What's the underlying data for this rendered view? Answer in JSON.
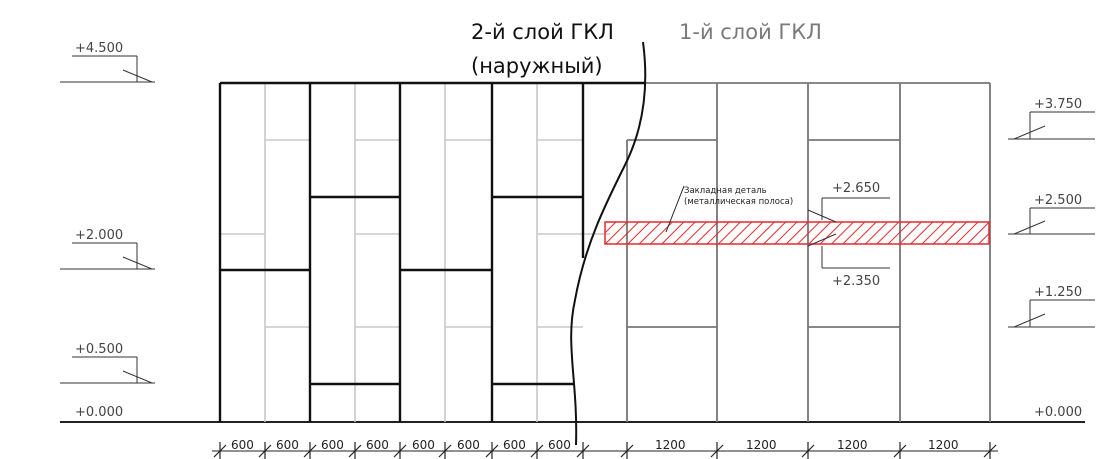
{
  "titles": {
    "layer2_line1": "2-й слой ГКЛ",
    "layer2_line2": "(наружный)",
    "layer1": "1-й слой ГКЛ"
  },
  "annotation": {
    "line1": "Закладная деталь",
    "line2": "(металлическая полоса)"
  },
  "embed_marks": {
    "top": "+2.650",
    "bottom": "+2.350"
  },
  "left_elevations": [
    "+4.500",
    "+2.000",
    "+0.500",
    "+0.000"
  ],
  "right_elevations": [
    "+3.750",
    "+2.500",
    "+1.250",
    "+0.000"
  ],
  "dims_left": [
    "600",
    "600",
    "600",
    "600",
    "600",
    "600",
    "600",
    "600"
  ],
  "dims_right": [
    "1200",
    "1200",
    "1200",
    "1200"
  ],
  "colors": {
    "outer_layer": "#111111",
    "inner_layer": "#777777",
    "seams": "#c8c8c8",
    "embed": "#e8282b"
  }
}
